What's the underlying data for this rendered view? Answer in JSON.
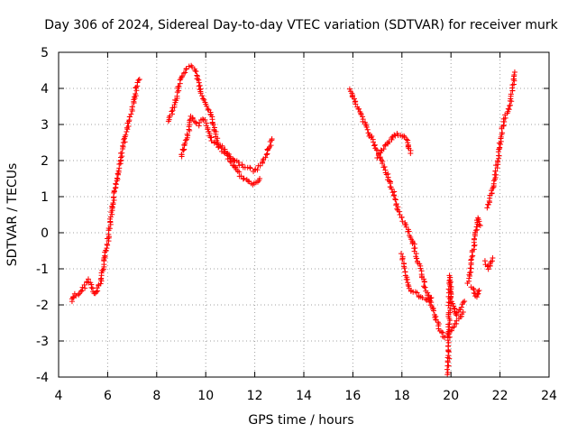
{
  "chart_data": {
    "type": "scatter",
    "title": "Day 306 of 2024, Sidereal Day-to-day VTEC variation (SDTVAR) for receiver murk",
    "xlabel": "GPS time / hours",
    "ylabel": "SDTVAR / TECUs",
    "xlim": [
      4,
      24
    ],
    "ylim": [
      -4,
      5
    ],
    "xticks": [
      4,
      6,
      8,
      10,
      12,
      14,
      16,
      18,
      20,
      22,
      24
    ],
    "yticks": [
      -4,
      -3,
      -2,
      -1,
      0,
      1,
      2,
      3,
      4,
      5
    ],
    "grid": true,
    "marker": "+",
    "colors": {
      "series": "#ff0000",
      "frame": "#000000",
      "grid": "#a0a0a0"
    },
    "series": [
      {
        "name": "SDTVAR",
        "segments": [
          {
            "x": [
              4.55,
              4.65,
              4.8,
              5.0,
              5.2,
              5.3,
              5.5,
              5.7,
              5.9,
              6.0,
              6.2,
              6.4,
              6.6,
              6.8,
              7.0,
              7.2,
              7.3
            ],
            "y": [
              -1.9,
              -1.7,
              -1.75,
              -1.55,
              -1.3,
              -1.4,
              -1.7,
              -1.4,
              -0.6,
              -0.3,
              0.7,
              1.6,
              2.3,
              2.9,
              3.4,
              4.1,
              4.25
            ]
          },
          {
            "x": [
              8.45,
              8.6,
              8.8,
              8.95,
              9.1,
              9.25,
              9.4,
              9.55,
              9.7,
              9.85,
              10.0,
              10.2,
              10.5,
              10.8,
              11.1,
              11.4,
              11.7,
              12.0,
              12.3,
              12.6,
              12.7
            ],
            "y": [
              3.1,
              3.3,
              3.7,
              4.2,
              4.4,
              4.55,
              4.6,
              4.55,
              4.2,
              3.8,
              3.6,
              3.3,
              2.5,
              2.25,
              2.05,
              1.9,
              1.8,
              1.7,
              1.9,
              2.4,
              2.6
            ]
          },
          {
            "x": [
              9.0,
              9.15,
              9.3,
              9.4,
              9.55,
              9.7,
              9.85,
              10.0,
              10.2,
              10.5,
              10.8,
              11.1,
              11.4,
              11.7,
              12.0,
              12.2
            ],
            "y": [
              2.1,
              2.5,
              2.8,
              3.2,
              3.1,
              3.0,
              3.15,
              3.1,
              2.6,
              2.4,
              2.2,
              1.9,
              1.6,
              1.4,
              1.35,
              1.5
            ]
          },
          {
            "x": [
              15.9,
              16.1,
              16.3,
              16.5,
              16.7,
              16.9,
              17.1,
              17.3,
              17.5,
              17.7,
              17.9,
              18.1,
              18.3,
              18.5,
              18.7,
              18.9,
              19.1,
              19.3,
              19.5,
              19.7,
              19.9,
              20.1,
              20.3,
              20.5
            ],
            "y": [
              4.0,
              3.6,
              3.3,
              3.0,
              2.7,
              2.4,
              2.1,
              1.8,
              1.4,
              1.0,
              0.5,
              0.3,
              0.0,
              -0.4,
              -0.9,
              -1.4,
              -1.8,
              -2.2,
              -2.6,
              -2.9,
              -2.8,
              -2.6,
              -2.4,
              -2.2
            ]
          },
          {
            "x": [
              17.0,
              17.2,
              17.4,
              17.6,
              17.8,
              18.0,
              18.2,
              18.35
            ],
            "y": [
              2.1,
              2.3,
              2.45,
              2.6,
              2.75,
              2.7,
              2.55,
              2.2
            ]
          },
          {
            "x": [
              18.0,
              18.1,
              18.25,
              18.4,
              18.6,
              18.8,
              19.0,
              19.2
            ],
            "y": [
              -0.6,
              -1.0,
              -1.5,
              -1.6,
              -1.7,
              -1.8,
              -1.85,
              -1.8
            ]
          },
          {
            "x": [
              19.85,
              19.9,
              19.95,
              20.0,
              20.05,
              20.2,
              20.4,
              20.55
            ],
            "y": [
              -3.9,
              -3.6,
              -1.2,
              -1.6,
              -2.0,
              -2.3,
              -2.1,
              -1.9
            ]
          },
          {
            "x": [
              20.7,
              20.8,
              20.9,
              21.0,
              21.1,
              21.2
            ],
            "y": [
              -1.4,
              -1.0,
              -0.5,
              0.0,
              0.4,
              0.2
            ]
          },
          {
            "x": [
              20.85,
              20.95,
              21.05,
              21.15
            ],
            "y": [
              -1.5,
              -1.7,
              -1.8,
              -1.6
            ]
          },
          {
            "x": [
              21.4,
              21.55,
              21.7
            ],
            "y": [
              -0.8,
              -1.0,
              -0.7
            ]
          },
          {
            "x": [
              21.5,
              21.6,
              21.75,
              21.9,
              22.0,
              22.1,
              22.2,
              22.35,
              22.5,
              22.6
            ],
            "y": [
              0.7,
              1.0,
              1.3,
              2.0,
              2.5,
              2.9,
              3.2,
              3.4,
              3.9,
              4.45
            ]
          }
        ]
      }
    ]
  }
}
